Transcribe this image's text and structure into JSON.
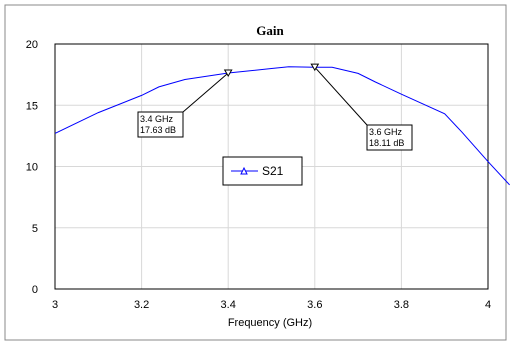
{
  "chart_data": {
    "type": "line",
    "title": "Gain",
    "xlabel": "Frequency (GHz)",
    "ylabel": "",
    "xlim": [
      3,
      4
    ],
    "ylim": [
      0,
      20
    ],
    "xticks": [
      "3",
      "3.2",
      "3.4",
      "3.6",
      "3.8",
      "4"
    ],
    "yticks": [
      "0",
      "5",
      "10",
      "15",
      "20"
    ],
    "grid": true,
    "legend_position": "center",
    "series": [
      {
        "name": "S21",
        "color": "#0000ff",
        "x": [
          3.0,
          3.1,
          3.2,
          3.24,
          3.3,
          3.4,
          3.5,
          3.54,
          3.6,
          3.64,
          3.7,
          3.74,
          3.8,
          3.9,
          3.94,
          4.0,
          4.05
        ],
        "y": [
          12.7,
          14.4,
          15.8,
          16.5,
          17.1,
          17.63,
          18.0,
          18.15,
          18.11,
          18.1,
          17.6,
          16.9,
          15.9,
          14.3,
          12.8,
          10.4,
          8.5
        ]
      }
    ],
    "markers": [
      {
        "label_freq": "3.4 GHz",
        "label_value": "17.63 dB",
        "x": 3.4,
        "y": 17.63
      },
      {
        "label_freq": "3.6 GHz",
        "label_value": "18.11 dB",
        "x": 3.6,
        "y": 18.11
      }
    ]
  }
}
